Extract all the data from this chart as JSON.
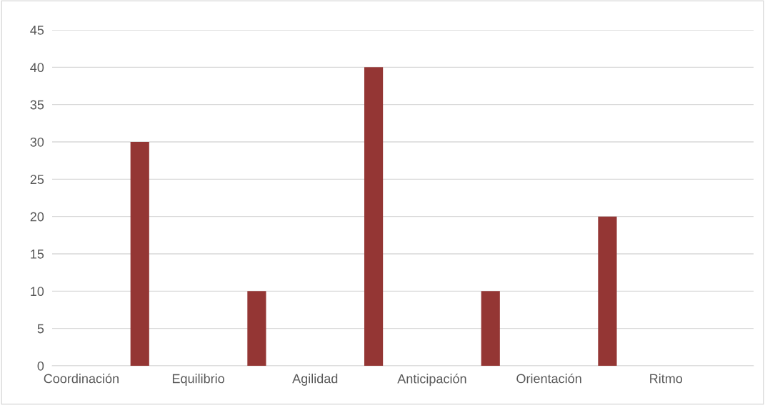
{
  "chart_data": {
    "type": "bar",
    "categories": [
      "Coordinación",
      "Equilibrio",
      "Agilidad",
      "Anticipación",
      "Orientación",
      "Ritmo"
    ],
    "values": [
      30,
      10,
      40,
      10,
      20,
      null
    ],
    "color": "#943634",
    "ylim": [
      0,
      45
    ],
    "yticks": [
      0,
      5,
      10,
      15,
      20,
      25,
      30,
      35,
      40,
      45
    ],
    "grid": "y"
  }
}
